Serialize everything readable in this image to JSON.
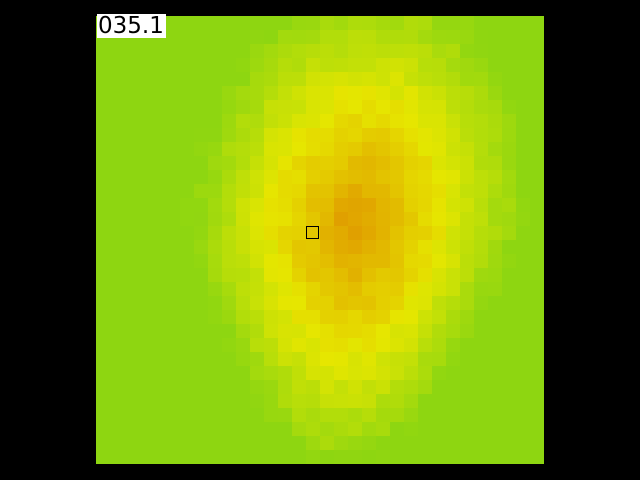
{
  "readout": {
    "temperature": "035.1"
  },
  "colors": {
    "background": "#000000",
    "cool": "#8ed611",
    "mid": "#e6e600",
    "hot": "#e0a000",
    "readout_bg": "#ffffff",
    "readout_fg": "#000000"
  },
  "icons": {
    "spot_marker": "square-crosshair-icon"
  }
}
